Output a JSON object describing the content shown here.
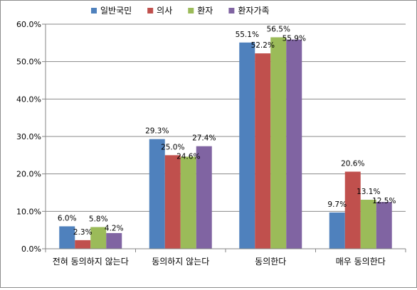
{
  "chart_data": {
    "type": "bar",
    "title": "",
    "xlabel": "",
    "ylabel": "",
    "categories": [
      "전혀 동의하지 않는다",
      "동의하지 않는다",
      "동의한다",
      "매우 동의한다"
    ],
    "series": [
      {
        "name": "일반국민",
        "color": "#4F81BD",
        "values": [
          6.0,
          29.3,
          55.1,
          9.7
        ]
      },
      {
        "name": "의사",
        "color": "#C0504D",
        "values": [
          2.3,
          25.0,
          52.2,
          20.6
        ]
      },
      {
        "name": "환자",
        "color": "#9BBB59",
        "values": [
          5.8,
          24.6,
          56.5,
          13.1
        ]
      },
      {
        "name": "환자가족",
        "color": "#8064A2",
        "values": [
          4.2,
          27.4,
          55.9,
          12.5
        ]
      }
    ],
    "ylim": [
      0,
      60
    ],
    "yticks": [
      0,
      10,
      20,
      30,
      40,
      50,
      60
    ],
    "ytick_labels": [
      "0.0%",
      "10.0%",
      "20.0%",
      "30.0%",
      "40.0%",
      "50.0%",
      "60.0%"
    ],
    "value_labels": [
      [
        "6.0%",
        "29.3%",
        "55.1%",
        "9.7%"
      ],
      [
        "2.3%",
        "25.0%",
        "52.2%",
        "20.6%"
      ],
      [
        "5.8%",
        "24.6%",
        "56.5%",
        "13.1%"
      ],
      [
        "4.2%",
        "27.4%",
        "55.9%",
        "12.5%"
      ]
    ],
    "grid": true,
    "legend_position": "top"
  }
}
